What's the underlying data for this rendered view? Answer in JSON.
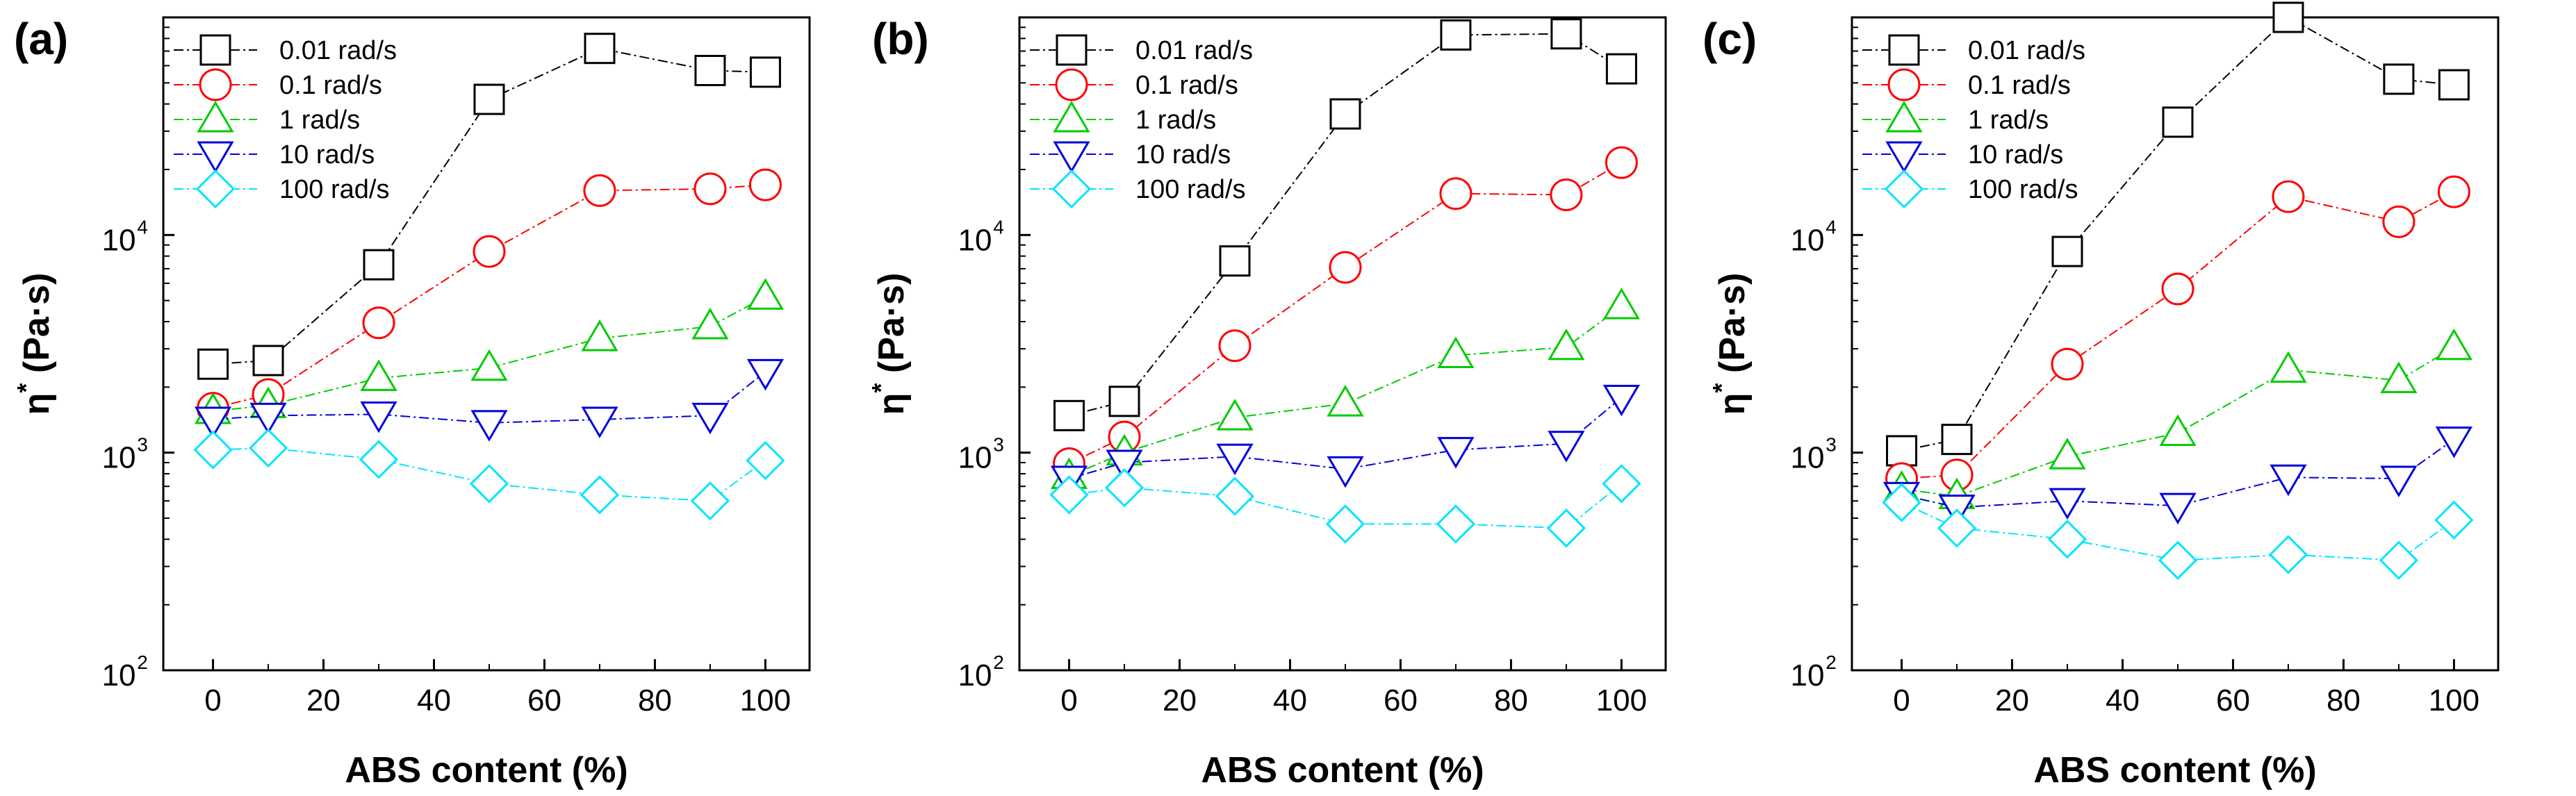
{
  "colors": {
    "0.01 rad/s": "#000000",
    "0.1 rad/s": "#ff0000",
    "1 rad/s": "#00cc00",
    "10 rad/s": "#0000dd",
    "100 rad/s": "#00e5ff"
  },
  "chart_data": [
    {
      "type": "scatter",
      "panel_label": "(a)",
      "xlabel": "ABS content (%)",
      "ylabel_parts": [
        "η",
        "*",
        " (Pa·s)"
      ],
      "x": [
        0,
        10,
        30,
        50,
        70,
        90,
        100
      ],
      "xticks": [
        0,
        20,
        40,
        60,
        80,
        100
      ],
      "xlim": [
        -9,
        108
      ],
      "ylim": [
        100,
        100000
      ],
      "yscale": "log",
      "yticks": [
        {
          "base": "10",
          "exp": "2"
        },
        {
          "base": "10",
          "exp": "3"
        },
        {
          "base": "10",
          "exp": "4"
        }
      ],
      "legend_position": "top-left",
      "series": [
        {
          "name": "0.01 rad/s",
          "marker": "square",
          "values": [
            2550,
            2650,
            7300,
            42000,
            72000,
            57000,
            56000
          ]
        },
        {
          "name": "0.1 rad/s",
          "marker": "circle",
          "values": [
            1600,
            1850,
            3950,
            8400,
            16000,
            16300,
            17000
          ]
        },
        {
          "name": "1 rad/s",
          "marker": "triangle-up",
          "values": [
            1550,
            1650,
            2200,
            2450,
            3350,
            3800,
            5200
          ]
        },
        {
          "name": "10 rad/s",
          "marker": "triangle-down",
          "values": [
            1420,
            1480,
            1500,
            1370,
            1420,
            1480,
            2350
          ]
        },
        {
          "name": "100 rad/s",
          "marker": "diamond",
          "values": [
            1030,
            1050,
            930,
            720,
            640,
            600,
            920
          ]
        }
      ]
    },
    {
      "type": "scatter",
      "panel_label": "(b)",
      "xlabel": "ABS content (%)",
      "ylabel_parts": [
        "η",
        "*",
        " (Pa·s)"
      ],
      "x": [
        0,
        10,
        30,
        50,
        70,
        90,
        100
      ],
      "xticks": [
        0,
        20,
        40,
        60,
        80,
        100
      ],
      "xlim": [
        -9,
        108
      ],
      "ylim": [
        100,
        100000
      ],
      "yscale": "log",
      "yticks": [
        {
          "base": "10",
          "exp": "2"
        },
        {
          "base": "10",
          "exp": "3"
        },
        {
          "base": "10",
          "exp": "4"
        }
      ],
      "legend_position": "top-left",
      "series": [
        {
          "name": "0.01 rad/s",
          "marker": "square",
          "values": [
            1480,
            1720,
            7600,
            36000,
            83000,
            84000,
            58000
          ]
        },
        {
          "name": "0.1 rad/s",
          "marker": "circle",
          "values": [
            890,
            1180,
            3100,
            7100,
            15500,
            15300,
            21500
          ]
        },
        {
          "name": "1 rad/s",
          "marker": "triangle-up",
          "values": [
            780,
            1000,
            1450,
            1680,
            2800,
            3050,
            4700
          ]
        },
        {
          "name": "10 rad/s",
          "marker": "triangle-down",
          "values": [
            760,
            900,
            960,
            840,
            1030,
            1100,
            1790
          ]
        },
        {
          "name": "100 rad/s",
          "marker": "diamond",
          "values": [
            640,
            690,
            630,
            470,
            470,
            450,
            720
          ]
        }
      ]
    },
    {
      "type": "scatter",
      "panel_label": "(c)",
      "xlabel": "ABS content (%)",
      "ylabel_parts": [
        "η",
        "*",
        " (Pa·s)"
      ],
      "x": [
        0,
        10,
        30,
        50,
        70,
        90,
        100
      ],
      "xticks": [
        0,
        20,
        40,
        60,
        80,
        100
      ],
      "xlim": [
        -9,
        108
      ],
      "ylim": [
        100,
        100000
      ],
      "yscale": "log",
      "yticks": [
        {
          "base": "10",
          "exp": "2"
        },
        {
          "base": "10",
          "exp": "3"
        },
        {
          "base": "10",
          "exp": "4"
        }
      ],
      "legend_position": "top-left",
      "series": [
        {
          "name": "0.01 rad/s",
          "marker": "square",
          "values": [
            1020,
            1150,
            8400,
            33000,
            100000,
            52000,
            49000
          ]
        },
        {
          "name": "0.1 rad/s",
          "marker": "circle",
          "values": [
            760,
            790,
            2550,
            5650,
            15000,
            11500,
            15800
          ]
        },
        {
          "name": "1 rad/s",
          "marker": "triangle-up",
          "values": [
            680,
            630,
            960,
            1230,
            2400,
            2150,
            3050
          ]
        },
        {
          "name": "10 rad/s",
          "marker": "triangle-down",
          "values": [
            640,
            560,
            600,
            570,
            770,
            760,
            1150
          ]
        },
        {
          "name": "100 rad/s",
          "marker": "diamond",
          "values": [
            590,
            450,
            400,
            320,
            340,
            320,
            490
          ]
        }
      ]
    }
  ]
}
